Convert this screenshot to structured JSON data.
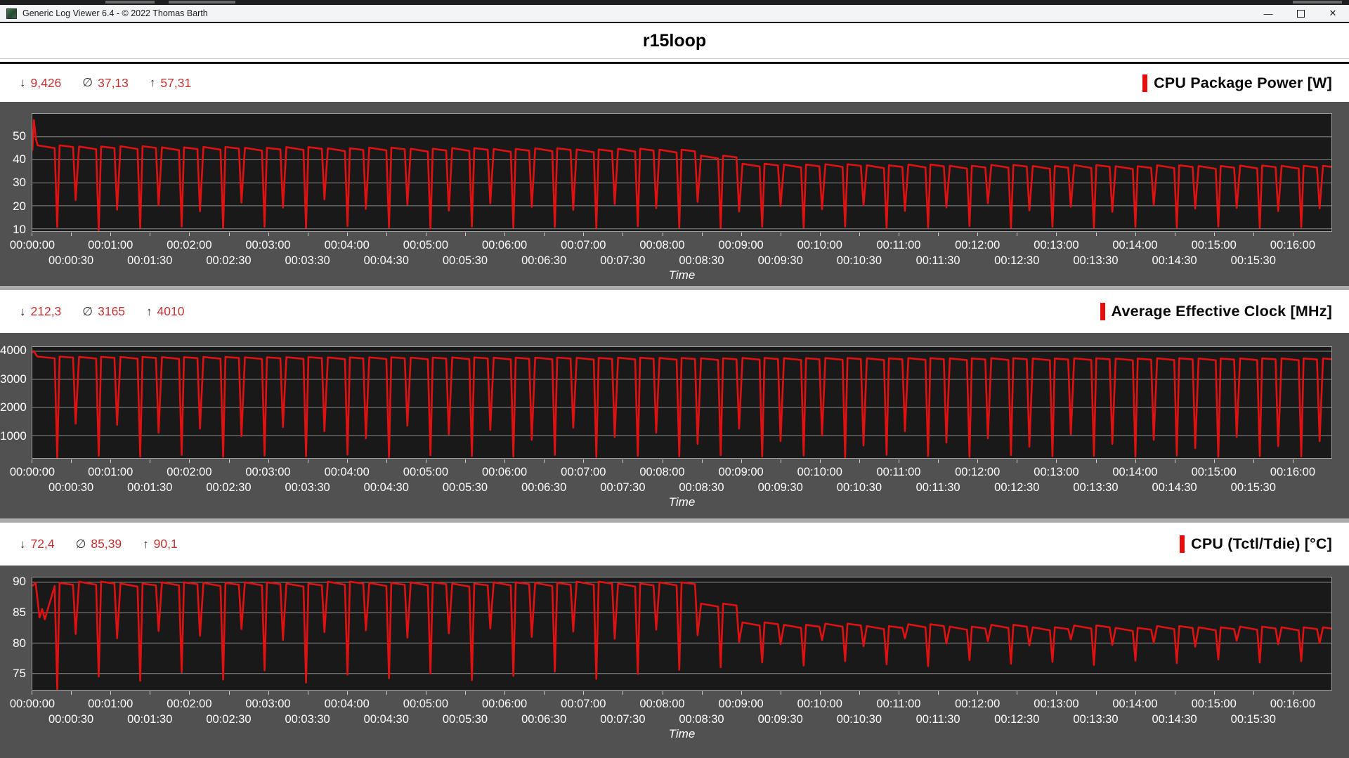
{
  "window": {
    "title": "Generic Log Viewer 6.4 - © 2022 Thomas Barth",
    "controls": {
      "minimize": "—",
      "close": "✕"
    }
  },
  "page_title": "r15loop",
  "glyphs": {
    "min": "↓",
    "avg": "∅",
    "max": "↑"
  },
  "time_axis": {
    "label": "Time",
    "t_end": 990,
    "tick_interval_s": 30,
    "row1": [
      "00:00:00",
      "00:01:00",
      "00:02:00",
      "00:03:00",
      "00:04:00",
      "00:05:00",
      "00:06:00",
      "00:07:00",
      "00:08:00",
      "00:09:00",
      "00:10:00",
      "00:11:00",
      "00:12:00",
      "00:13:00",
      "00:14:00",
      "00:15:00",
      "00:16:00"
    ],
    "row2": [
      "00:00:30",
      "00:01:30",
      "00:02:30",
      "00:03:30",
      "00:04:30",
      "00:05:30",
      "00:06:30",
      "00:07:30",
      "00:08:30",
      "00:09:30",
      "00:10:30",
      "00:11:30",
      "00:12:30",
      "00:13:30",
      "00:14:30",
      "00:15:30"
    ]
  },
  "chart_data": [
    {
      "type": "line",
      "title": "CPU Package Power [W]",
      "stats": {
        "min": "9,426",
        "avg": "37,13",
        "max": "57,31"
      },
      "color": "#e01111",
      "y_ticks": [
        10,
        20,
        30,
        40,
        50
      ],
      "y_range": [
        9,
        60
      ],
      "start_points": [
        [
          0,
          44.0
        ],
        [
          1.2,
          57.3
        ],
        [
          2.8,
          49.0
        ]
      ],
      "cycle": {
        "t0": 4,
        "period": 31.6,
        "offsets": {
          "sag": 13,
          "deep": 15,
          "recover": 16.8,
          "sag2": 27,
          "shallow": 29
        },
        "sag_amount": 1.2
      },
      "high": [
        46.3,
        45.8,
        45.9,
        45.4,
        45.6,
        45.2,
        45.5,
        45.0,
        45.3,
        44.8,
        45.1,
        44.7,
        45.0,
        44.5,
        44.8,
        44.4,
        41.8,
        38.3,
        37.9,
        38.1,
        37.6,
        37.9,
        37.4,
        37.8,
        37.3,
        37.7,
        37.2,
        37.6,
        37.3,
        37.5,
        37.4
      ],
      "deep": [
        10.8,
        9.4,
        10.5,
        11.0,
        10.3,
        10.9,
        10.4,
        11.2,
        10.6,
        10.2,
        11.0,
        10.5,
        10.8,
        10.3,
        11.1,
        10.6,
        10.4,
        10.9,
        10.5,
        11.0,
        10.3,
        10.7,
        11.2,
        10.5,
        10.9,
        10.4,
        10.8,
        10.6,
        11.0,
        10.5,
        10.7
      ],
      "shallow": [
        22.5,
        18.3,
        20.1,
        17.6,
        21.4,
        19.2,
        22.8,
        18.7,
        20.5,
        17.9,
        21.0,
        19.5,
        18.2,
        20.8,
        19.0,
        21.7,
        17.5,
        19.8,
        18.5,
        20.2,
        17.8,
        19.3,
        21.1,
        18.0,
        19.6,
        17.4,
        20.4,
        18.8,
        19.1,
        17.7,
        18.9
      ]
    },
    {
      "type": "line",
      "title": "Average Effective Clock [MHz]",
      "stats": {
        "min": "212,3",
        "avg": "3165",
        "max": "4010"
      },
      "color": "#e01111",
      "y_ticks": [
        1000,
        2000,
        3000,
        4000
      ],
      "y_range": [
        200,
        4150
      ],
      "start_points": [
        [
          0,
          3950
        ],
        [
          1.2,
          4010
        ],
        [
          3,
          3860
        ]
      ],
      "cycle": {
        "t0": 4,
        "period": 31.6,
        "offsets": {
          "sag": 13,
          "deep": 15,
          "recover": 16.8,
          "sag2": 27,
          "shallow": 29
        },
        "sag_amount": 60
      },
      "high": [
        3810,
        3800,
        3795,
        3790,
        3795,
        3785,
        3790,
        3780,
        3785,
        3775,
        3780,
        3770,
        3775,
        3765,
        3770,
        3760,
        3750,
        3760,
        3752,
        3758,
        3748,
        3755,
        3745,
        3752,
        3742,
        3750,
        3740,
        3748,
        3742,
        3746,
        3744
      ],
      "deep": [
        212,
        280,
        250,
        310,
        240,
        290,
        260,
        320,
        230,
        300,
        270,
        250,
        310,
        240,
        280,
        260,
        300,
        250,
        290,
        230,
        310,
        270,
        240,
        300,
        260,
        280,
        250,
        290,
        240,
        270,
        255
      ],
      "shallow": [
        1420,
        1380,
        1100,
        1250,
        980,
        1300,
        1150,
        900,
        1350,
        1050,
        1200,
        850,
        1280,
        950,
        1100,
        700,
        1250,
        800,
        1000,
        650,
        1150,
        750,
        900,
        600,
        1050,
        700,
        850,
        550,
        950,
        620,
        800
      ]
    },
    {
      "type": "line",
      "title": "CPU (Tctl/Tdie) [°C]",
      "stats": {
        "min": "72,4",
        "avg": "85,39",
        "max": "90,1"
      },
      "color": "#e01111",
      "y_ticks": [
        75,
        80,
        85,
        90
      ],
      "y_range": [
        72.3,
        90.8
      ],
      "start_points": [
        [
          0,
          89.4
        ],
        [
          2.5,
          89.9
        ],
        [
          5.5,
          84.2
        ],
        [
          7.5,
          85.6
        ],
        [
          9.5,
          83.9
        ]
      ],
      "cycle": {
        "t0": 4,
        "period": 31.6,
        "offsets": {
          "sag": 13,
          "deep": 15,
          "recover": 16.8,
          "sag2": 27,
          "shallow": 29
        },
        "sag_amount": 0.5
      },
      "high": [
        89.9,
        90.1,
        89.8,
        90.0,
        89.9,
        90.0,
        89.8,
        90.1,
        89.9,
        90.0,
        89.8,
        90.0,
        89.9,
        90.1,
        89.8,
        90.0,
        86.5,
        83.4,
        83.0,
        83.2,
        82.8,
        83.1,
        82.7,
        83.0,
        82.6,
        82.9,
        82.5,
        82.8,
        82.6,
        82.7,
        82.6
      ],
      "deep": [
        72.4,
        74.5,
        73.8,
        75.2,
        74.0,
        75.5,
        73.5,
        74.8,
        74.2,
        75.0,
        73.9,
        74.6,
        75.3,
        74.1,
        74.9,
        75.6,
        76.0,
        76.8,
        76.3,
        77.0,
        76.5,
        76.2,
        77.2,
        76.6,
        76.9,
        76.4,
        77.1,
        76.7,
        77.3,
        76.8,
        77.0
      ],
      "shallow": [
        81.5,
        80.8,
        82.0,
        81.2,
        82.3,
        80.5,
        81.8,
        82.1,
        80.9,
        81.6,
        82.4,
        81.0,
        81.9,
        80.7,
        82.2,
        81.3,
        80.2,
        79.8,
        80.5,
        79.5,
        80.8,
        79.9,
        80.3,
        79.6,
        80.6,
        79.7,
        80.1,
        79.4,
        80.4,
        79.8,
        80.0
      ]
    }
  ]
}
